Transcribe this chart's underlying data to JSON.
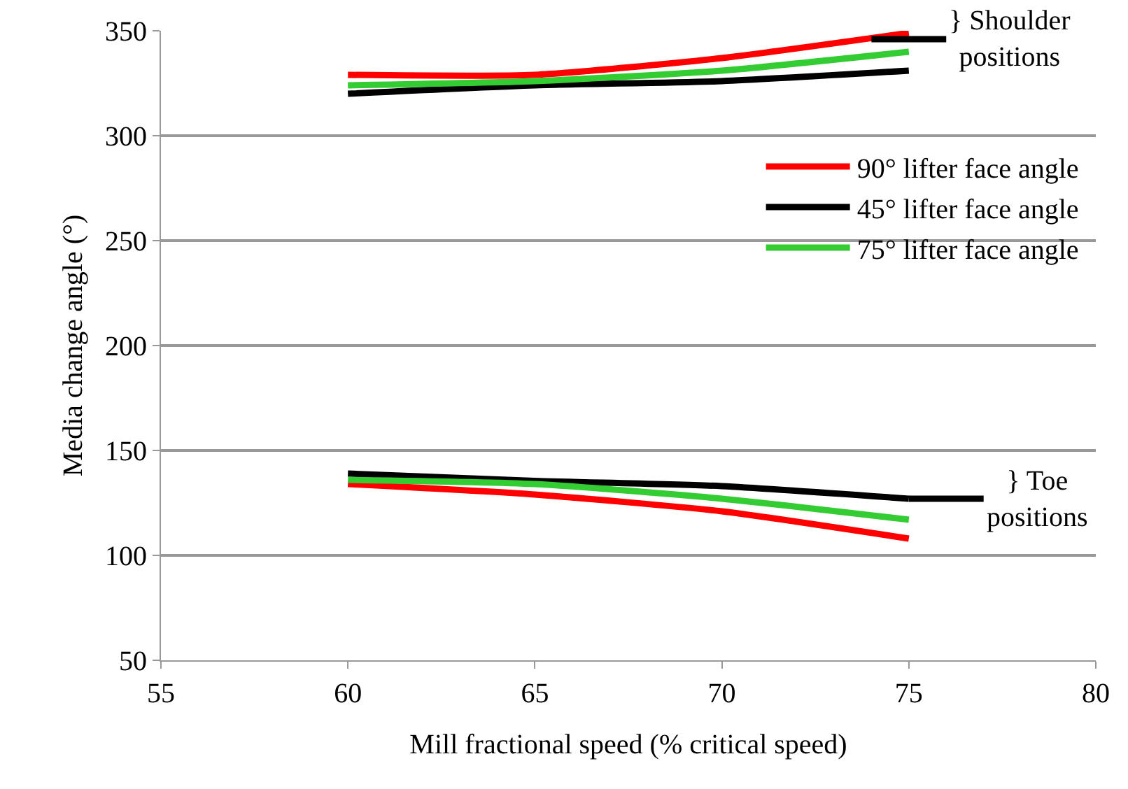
{
  "chart_data": {
    "type": "line",
    "xlabel": "Mill fractional speed (% critical speed)",
    "ylabel": "Media change angle (°)",
    "x": [
      60,
      65,
      70,
      75
    ],
    "series": [
      {
        "name": "90° lifter face angle",
        "color": "#ff0000",
        "values": [
          329,
          329,
          337,
          349
        ]
      },
      {
        "name": "45° lifter face angle",
        "color": "#000000",
        "values": [
          320,
          324,
          326,
          331
        ]
      },
      {
        "name": "75° lifter face angle",
        "color": "#33cc33",
        "values": [
          324,
          326,
          331,
          340
        ]
      },
      {
        "color": "#ff0000",
        "values": [
          134,
          129,
          121,
          108
        ]
      },
      {
        "color": "#000000",
        "values": [
          139,
          135.5,
          133,
          127
        ]
      },
      {
        "color": "#33cc33",
        "values": [
          136,
          134,
          127,
          117
        ]
      }
    ],
    "xlim": [
      55,
      80
    ],
    "xticks": [
      55,
      60,
      65,
      70,
      75,
      80
    ],
    "ylim": [
      50,
      350
    ],
    "yticks": [
      50,
      100,
      150,
      200,
      250,
      300,
      350
    ],
    "grid": "y",
    "legend": "right",
    "marker": "none",
    "line_style": "solid",
    "annotations": [
      {
        "text": "} Shoulder\npositions",
        "x": 74,
        "y": 346
      },
      {
        "text": "} Toe\npositions",
        "x": 75,
        "y": 127
      }
    ]
  }
}
